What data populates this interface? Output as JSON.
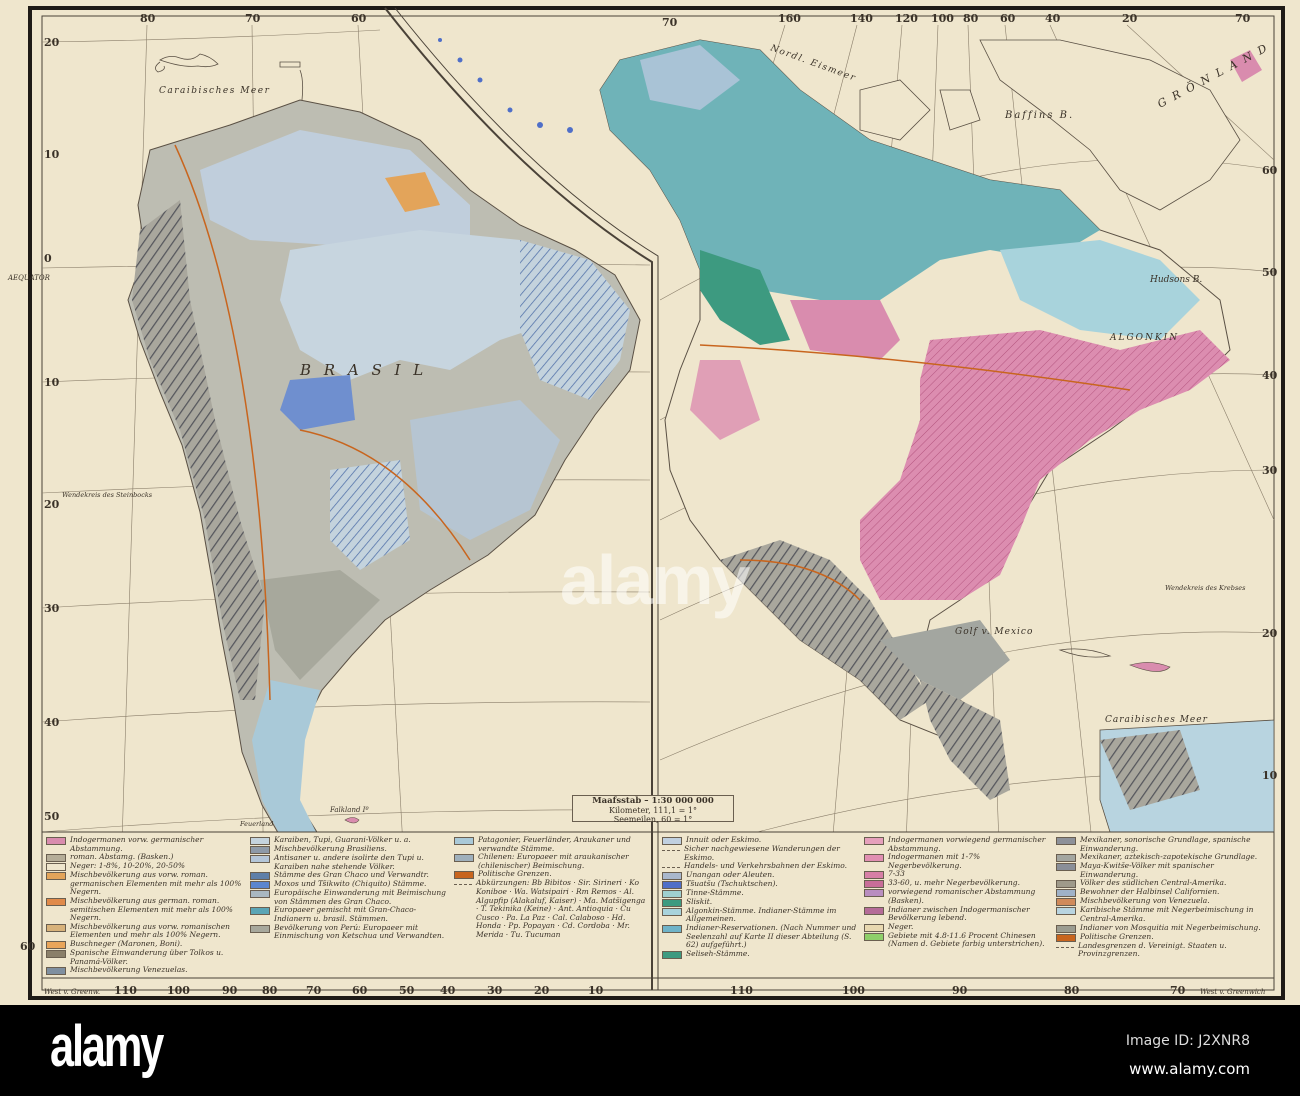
{
  "colors": {
    "paper": "#efe6cd",
    "indogermanen": "#d98cae",
    "algonkin_teal": "#6fb3b8",
    "eskimo_blue": "#a9c3d6",
    "mixed_gray": "#a8a79c",
    "brazil_blue": "#c4d3dd",
    "orange_mix": "#e3a45a",
    "border_orange": "#c8651e"
  },
  "south_america": {
    "sea_label": "Caraibisches Meer",
    "country_label": "B R A S I L",
    "equator": "AEQUATOR",
    "tropic": "Wendekreis des Steinbocks",
    "falkland": "Falkland Iº",
    "feuerland": "Feuerland",
    "top_degrees": [
      "80",
      "70",
      "60"
    ],
    "side_degrees": [
      "20",
      "10",
      "0",
      "10",
      "20",
      "30",
      "40",
      "50",
      "60"
    ],
    "bottom_prefix": "West v. Greenw.",
    "bottom_degrees": [
      "110",
      "100",
      "90",
      "80",
      "70",
      "60",
      "50",
      "40",
      "30",
      "20",
      "10"
    ]
  },
  "north_america": {
    "arctic_sea": "Nordl. Eismeer",
    "greenland": "G R Ö N L A N D",
    "baffin": "Baffins B.",
    "hudson": "Hudsons B.",
    "algonkin": "ALGONKIN",
    "gulf": "Golf v. Mexico",
    "sea_label": "Caraibisches Meer",
    "tropic": "Wendekreis des Krebses",
    "top_degrees": [
      "70",
      "160",
      "140",
      "120",
      "100",
      "80",
      "60",
      "40",
      "20",
      "70"
    ],
    "side_degrees": [
      "60",
      "50",
      "40",
      "30",
      "20",
      "10"
    ],
    "bottom_degrees": [
      "110",
      "100",
      "90",
      "80",
      "70"
    ],
    "bottom_suffix": "West v. Greenwich"
  },
  "scale": {
    "title": "Maafsstab – 1:30 000 000",
    "km": "Kilometer, 111,1 = 1°",
    "sm": "Seemeilen, 60 = 1°"
  },
  "legend_left": [
    [
      {
        "color": "#d98cae",
        "text": "Indogermanen vorw. germanischer Abstammung."
      },
      {
        "color": "#b5ad98",
        "text": "roman. Abstamg. (Basken.)"
      },
      {
        "color": "#efe6cd",
        "text": "Neger: 1-8%, 10-20%, 20-50%"
      },
      {
        "color": "#e3a45a",
        "text": "Mischbevölkerung aus vorw. roman. germanischen Elementen mit mehr als 100% Negern."
      },
      {
        "color": "#e08a4a",
        "text": "Mischbevölkerung aus german. roman. semitischen Elementen mit mehr als 100% Negern."
      },
      {
        "color": "#d8b27a",
        "text": "Mischbevölkerung aus vorw. romanischen Elementen und mehr als 100% Negern."
      },
      {
        "color": "#e9a55a",
        "text": "Buschneger (Maronen, Boni)."
      },
      {
        "color": "#8a7f6a",
        "text": "Spanische Einwanderung über Tolkos u. Panamá-Völker."
      },
      {
        "color": "#7f8fa0",
        "text": "Mischbevölkerung Venezuelas."
      }
    ],
    [
      {
        "color": "#c4d3dd",
        "text": "Karaiben, Tupi, Guarani-Völker u. a."
      },
      {
        "color": "#8e9aa8",
        "text": "Mischbevölkerung Brasiliens."
      },
      {
        "color": "#b4c6d8",
        "text": "Antisaner u. andere isolirte den Tupi u. Karaiben nahe stehende Völker."
      },
      {
        "color": "#5f7fa8",
        "text": "Stämme des Gran Chaco und Verwandtr."
      },
      {
        "color": "#5b86cf",
        "text": "Moxos und Tšikwito (Chiquito) Stämme."
      },
      {
        "color": "#a9b8c0",
        "text": "Europäische Einwanderung mit Beimischung von Stämmen des Gran Chaco."
      },
      {
        "color": "#5aa5b5",
        "text": "Europaeer gemischt mit Gran-Chaco-Indianern u. brasil. Stämmen."
      },
      {
        "color": "#a7a89c",
        "text": "Bevölkerung von Perú: Europaeer mit Einmischung von Ketschua und Verwandten."
      }
    ],
    [
      {
        "color": "#a9c9d8",
        "text": "Patagonier, Feuerländer, Araukaner und verwandte Stämme."
      },
      {
        "color": "#9fb0bc",
        "text": "Chilenen: Europaeer mit araukanischer (chilenischer) Beimischung."
      },
      {
        "color": "#c8651e",
        "text": "Politische Grenzen."
      },
      {
        "color": "",
        "text": "Abkürzungen: Bb Bibitos · Sir. Sirineri · Ko Koniboe · Wa. Watsipairi · Rm Remos · Al. Algupfip (Alakaluf, Kaiser) · Ma. Matšigenga · T. Tekinika (Keine) · Ant. Antioquia · Cu Cusco · Pa. La Paz · Cal. Calaboso · Hd. Honda · Pp. Popayan · Cd. Cordoba · Mr. Merida · Tu. Tucuman"
      }
    ]
  ],
  "legend_right": [
    [
      {
        "color": "#c0d0e0",
        "text": "Innuit oder Eskimo."
      },
      {
        "color": "",
        "text": "Sicher nachgewiesene Wanderungen der Eskimo."
      },
      {
        "color": "",
        "text": "Handels- und Verkehrsbahnen der Eskimo."
      },
      {
        "color": "#a9b7cc",
        "text": "Unangan oder Aleuten."
      },
      {
        "color": "#4f6fc8",
        "text": "Tšuatšu (Tschuktschen)."
      },
      {
        "color": "#9fd0d0",
        "text": "Tinne-Stämme."
      },
      {
        "color": "#3d9a80",
        "text": "Sliskit."
      },
      {
        "color": "#a8d3dc",
        "text": "Algonkin-Stämme. Indianer-Stämme im Allgemeinen."
      },
      {
        "color": "#6fb3c8",
        "text": "Indianer-Reservationen. (Nach Nummer und Seelenzahl auf Karte II dieser Abteilung (S. 62) aufgeführt.)"
      },
      {
        "color": "#3d9a80",
        "text": "Seliseh-Stämme."
      }
    ],
    [
      {
        "color": "#e6a0bc",
        "text": "Indogermanen vorwiegend germanischer Abstammung."
      },
      {
        "color": "#e18fb2",
        "text": "Indogermanen mit 1-7% Negerbevölkerung."
      },
      {
        "color": "#d77fa6",
        "text": "7-33"
      },
      {
        "color": "#c86d98",
        "text": "33-60, u. mehr Negerbevölkerung."
      },
      {
        "color": "#b98ec0",
        "text": "vorwiegend romanischer Abstammung (Basken)."
      },
      {
        "color": "#b56c98",
        "text": "Indianer zwischen Indogermanischer Bevölkerung lebend."
      },
      {
        "color": "#e8d8b0",
        "text": "Neger."
      },
      {
        "color": "#8fcf6a",
        "text": "Gebiete mit 4.8-11.6 Procent Chinesen (Namen d. Gebiete farbig unterstrichen)."
      }
    ],
    [
      {
        "color": "#8d9199",
        "text": "Mexikaner, sonorische Grundlage, spanische Einwanderung."
      },
      {
        "color": "#a3a6a0",
        "text": "Mexikaner, aztekisch-zapotekische Grundlage."
      },
      {
        "color": "#8a8f98",
        "text": "Maya-Kwitše-Völker mit spanischer Einwanderung."
      },
      {
        "color": "#9f9a8a",
        "text": "Völker des südlichen Central-Amerika."
      },
      {
        "color": "#9fb2c8",
        "text": "Bewohner der Halbinsel Californien."
      },
      {
        "color": "#d08a5a",
        "text": "Mischbevölkerung von Venezuela."
      },
      {
        "color": "#b8d4e0",
        "text": "Karibische Stämme mit Negerbeimischung in Central-Amerika."
      },
      {
        "color": "#9b9c90",
        "text": "Indianer von Mosquitia mit Negerbeimischung."
      },
      {
        "color": "#c8651e",
        "text": "Politische Grenzen."
      },
      {
        "color": "",
        "text": "Landesgrenzen d. Vereinigt. Staaten u. Provinzgrenzen."
      }
    ]
  ],
  "watermark": "alamy",
  "footer": {
    "logo": "alamy",
    "image_id": "Image ID: J2XNR8",
    "url": "www.alamy.com"
  }
}
